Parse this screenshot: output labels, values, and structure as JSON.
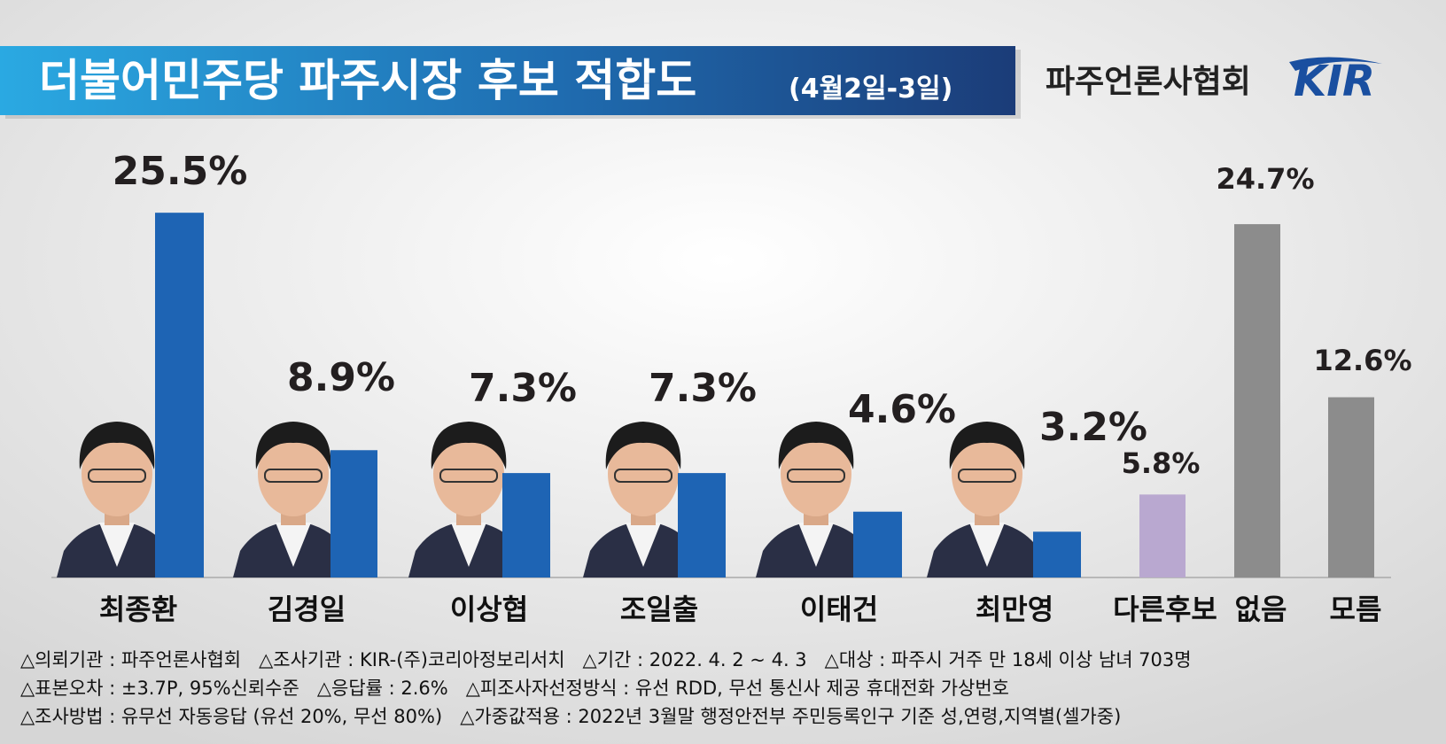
{
  "chart_data": {
    "type": "bar",
    "title": "더불어민주당 파주시장 후보 적합도",
    "subtitle": "(4월2일-3일)",
    "categories": [
      "최종환",
      "김경일",
      "이상협",
      "조일출",
      "이태건",
      "최만영",
      "다른후보",
      "없음",
      "모름"
    ],
    "values": [
      25.5,
      8.9,
      7.3,
      7.3,
      4.6,
      3.2,
      5.8,
      24.7,
      12.6
    ],
    "value_labels": [
      "25.5%",
      "8.9%",
      "7.3%",
      "7.3%",
      "4.6%",
      "3.2%",
      "5.8%",
      "24.7%",
      "12.6%"
    ],
    "colors": [
      "#1e64b4",
      "#1e64b4",
      "#1e64b4",
      "#1e64b4",
      "#1e64b4",
      "#1e64b4",
      "#b9a8d0",
      "#8c8c8c",
      "#8c8c8c"
    ]
  },
  "source": "파주언론사협회",
  "logo": "KIR",
  "footnotes": [
    "△의뢰기관 : 파주언론사협회   △조사기관 : KIR-(주)코리아정보리서치   △기간 : 2022. 4. 2 ~ 4. 3   △대상 : 파주시 거주 만 18세 이상 남녀 703명",
    "△표본오차 : ±3.7P, 95%신뢰수준   △응답률 : 2.6%   △피조사자선정방식 : 유선 RDD, 무선 통신사 제공 휴대전화 가상번호",
    "△조사방법 : 유무선 자동응답 (유선 20%, 무선 80%)   △가중값적용 : 2022년 3월말 행정안전부 주민등록인구 기준 성,연령,지역별(셀가중)"
  ]
}
